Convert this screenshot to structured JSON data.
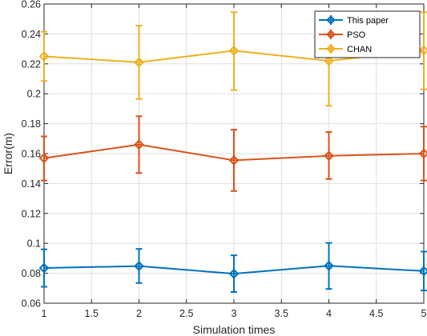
{
  "chart_data": {
    "type": "line",
    "xlabel": "Simulation times",
    "ylabel": "Error(m)",
    "xlim": [
      1,
      5
    ],
    "ylim": [
      0.06,
      0.26
    ],
    "xticks": [
      "1",
      "1.5",
      "2",
      "2.5",
      "3",
      "3.5",
      "4",
      "4.5",
      "5"
    ],
    "yticks": [
      "0.06",
      "0.08",
      "0.1",
      "0.12",
      "0.14",
      "0.16",
      "0.18",
      "0.2",
      "0.22",
      "0.24",
      "0.26"
    ],
    "grid": true,
    "legend_position": "top-right",
    "x": [
      1,
      2,
      3,
      4,
      5
    ],
    "series": [
      {
        "name": "This paper",
        "color": "#0072bd",
        "values": [
          0.0835,
          0.0848,
          0.0797,
          0.085,
          0.0815
        ],
        "error_low": [
          0.071,
          0.0735,
          0.0675,
          0.0695,
          0.0685
        ],
        "error_high": [
          0.096,
          0.0963,
          0.092,
          0.1003,
          0.0945
        ]
      },
      {
        "name": "PSO",
        "color": "#d95319",
        "values": [
          0.157,
          0.166,
          0.1555,
          0.1585,
          0.16
        ],
        "error_low": [
          0.142,
          0.147,
          0.135,
          0.143,
          0.142
        ],
        "error_high": [
          0.1715,
          0.185,
          0.176,
          0.1745,
          0.178
        ]
      },
      {
        "name": "CHAN",
        "color": "#edb120",
        "values": [
          0.225,
          0.221,
          0.2288,
          0.222,
          0.229
        ],
        "error_low": [
          0.2085,
          0.1965,
          0.2025,
          0.192,
          0.203
        ],
        "error_high": [
          0.2415,
          0.2455,
          0.2545,
          0.25,
          0.2545
        ]
      }
    ]
  }
}
